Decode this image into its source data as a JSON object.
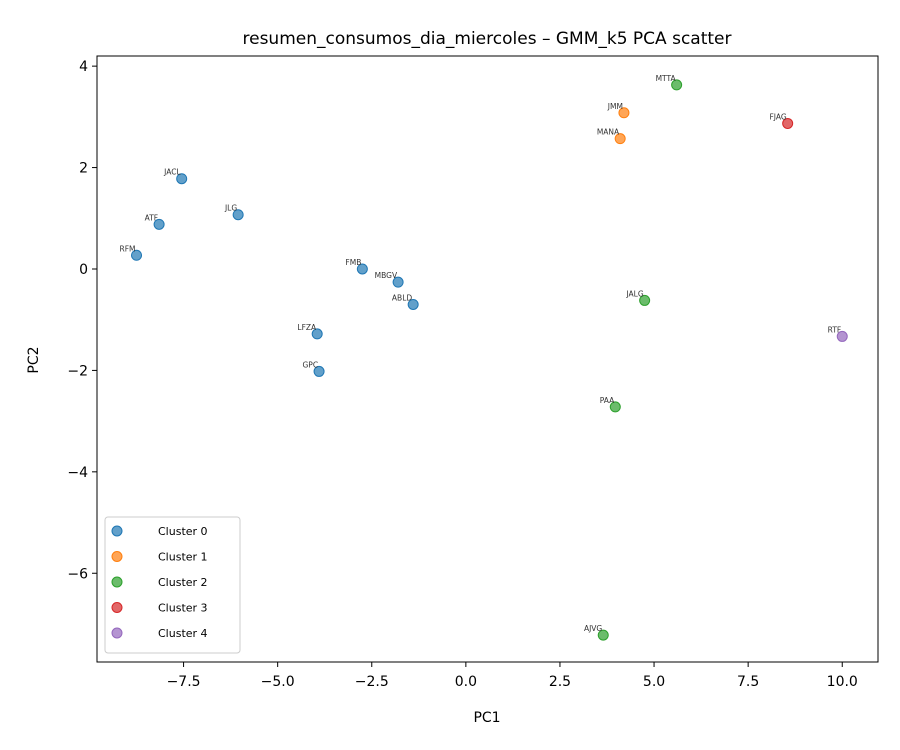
{
  "chart_data": {
    "type": "scatter",
    "title": "resumen_consumos_dia_miercoles – GMM_k5 PCA scatter",
    "xlabel": "PC1",
    "ylabel": "PC2",
    "xlim": [
      -9.8,
      10.95
    ],
    "ylim": [
      -7.75,
      4.2
    ],
    "xticks": [
      -7.5,
      -5.0,
      -2.5,
      0.0,
      2.5,
      5.0,
      7.5,
      10.0
    ],
    "xtick_labels": [
      "−7.5",
      "−5.0",
      "−2.5",
      "0.0",
      "2.5",
      "5.0",
      "7.5",
      "10.0"
    ],
    "yticks": [
      -6,
      -4,
      -2,
      0,
      2,
      4
    ],
    "ytick_labels": [
      "−6",
      "−4",
      "−2",
      "0",
      "2",
      "4"
    ],
    "grid": false,
    "legend_position": "bottom-left",
    "series": [
      {
        "name": "Cluster 0",
        "color": "#1f77b4",
        "points": [
          {
            "label": "JACL",
            "x": -7.55,
            "y": 1.78
          },
          {
            "label": "JLG",
            "x": -6.05,
            "y": 1.07
          },
          {
            "label": "ATF",
            "x": -8.15,
            "y": 0.88
          },
          {
            "label": "RFM",
            "x": -8.75,
            "y": 0.27
          },
          {
            "label": "FMB",
            "x": -2.75,
            "y": 0.0
          },
          {
            "label": "MBGV",
            "x": -1.8,
            "y": -0.26
          },
          {
            "label": "ABLD",
            "x": -1.4,
            "y": -0.7
          },
          {
            "label": "LFZA",
            "x": -3.95,
            "y": -1.28
          },
          {
            "label": "GPC",
            "x": -3.9,
            "y": -2.02
          }
        ]
      },
      {
        "name": "Cluster 1",
        "color": "#ff7f0e",
        "points": [
          {
            "label": "JMM",
            "x": 4.2,
            "y": 3.08
          },
          {
            "label": "MANA",
            "x": 4.1,
            "y": 2.57
          }
        ]
      },
      {
        "name": "Cluster 2",
        "color": "#2ca02c",
        "points": [
          {
            "label": "MTTA",
            "x": 5.6,
            "y": 3.63
          },
          {
            "label": "JALG",
            "x": 4.75,
            "y": -0.62
          },
          {
            "label": "PAA",
            "x": 3.97,
            "y": -2.72
          },
          {
            "label": "AJVG",
            "x": 3.65,
            "y": -7.22
          }
        ]
      },
      {
        "name": "Cluster 3",
        "color": "#d62728",
        "points": [
          {
            "label": "FJAG",
            "x": 8.55,
            "y": 2.87
          }
        ]
      },
      {
        "name": "Cluster 4",
        "color": "#9467bd",
        "points": [
          {
            "label": "RTF",
            "x": 10.0,
            "y": -1.33
          }
        ]
      }
    ]
  }
}
